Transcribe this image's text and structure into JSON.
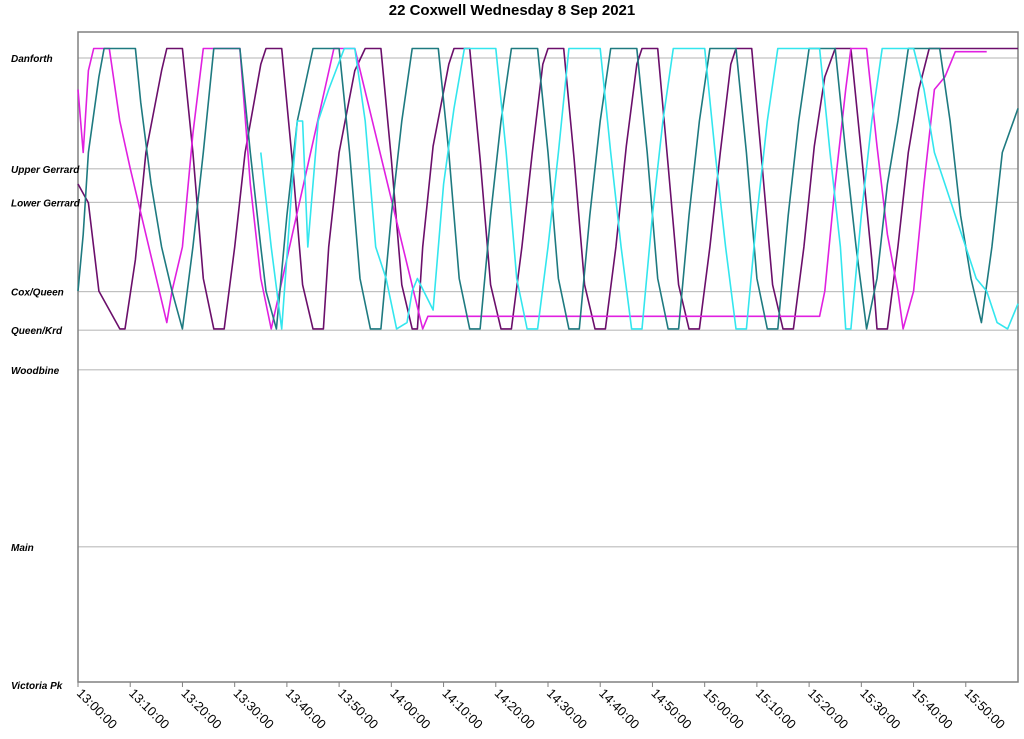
{
  "chart_data": {
    "type": "line",
    "title": "22 Coxwell Wednesday 8 Sep 2021",
    "xlim": [
      "13:00:00",
      "16:00:00"
    ],
    "x_ticks": [
      "13:00:00",
      "13:10:00",
      "13:20:00",
      "13:30:00",
      "13:40:00",
      "13:50:00",
      "14:00:00",
      "14:10:00",
      "14:20:00",
      "14:30:00",
      "14:40:00",
      "14:50:00",
      "15:00:00",
      "15:10:00",
      "15:20:00",
      "15:30:00",
      "15:40:00",
      "15:50:00"
    ],
    "stops": [
      {
        "name": "Danforth",
        "pos": 0
      },
      {
        "name": "Upper Gerrard",
        "pos": 1.76
      },
      {
        "name": "Lower Gerrard",
        "pos": 2.29
      },
      {
        "name": "Cox/Queen",
        "pos": 3.71
      },
      {
        "name": "Queen/Krd",
        "pos": 4.32
      },
      {
        "name": "Woodbine",
        "pos": 4.95
      },
      {
        "name": "Main",
        "pos": 7.76
      },
      {
        "name": "Victoria Pk",
        "pos": 9.95
      }
    ],
    "grid": true,
    "legend": "none",
    "series": [
      {
        "color": "#6b0f6b",
        "points": [
          [
            "13:00",
            2.0
          ],
          [
            "13:02",
            2.3
          ],
          [
            "13:04",
            3.7
          ],
          [
            "13:08",
            4.3
          ],
          [
            "13:09",
            4.3
          ],
          [
            "13:11",
            3.2
          ],
          [
            "13:13",
            1.5
          ],
          [
            "13:16",
            0.2
          ],
          [
            "13:17",
            -0.15
          ],
          [
            "13:20",
            -0.15
          ],
          [
            "13:22",
            1.5
          ],
          [
            "13:24",
            3.5
          ],
          [
            "13:26",
            4.3
          ],
          [
            "13:28",
            4.3
          ],
          [
            "13:30",
            3.0
          ],
          [
            "13:32",
            1.5
          ],
          [
            "13:35",
            0.1
          ],
          [
            "13:36",
            -0.15
          ],
          [
            "13:39",
            -0.15
          ],
          [
            "13:41",
            1.6
          ],
          [
            "13:43",
            3.6
          ],
          [
            "13:45",
            4.3
          ],
          [
            "13:47",
            4.3
          ],
          [
            "13:48",
            3.0
          ],
          [
            "13:50",
            1.5
          ],
          [
            "13:53",
            0.2
          ],
          [
            "13:55",
            -0.15
          ],
          [
            "13:58",
            -0.15
          ],
          [
            "14:00",
            1.6
          ],
          [
            "14:02",
            3.6
          ],
          [
            "14:04",
            4.3
          ],
          [
            "14:05",
            4.3
          ],
          [
            "14:06",
            3.0
          ],
          [
            "14:08",
            1.4
          ],
          [
            "14:11",
            0.1
          ],
          [
            "14:12",
            -0.15
          ],
          [
            "14:15",
            -0.15
          ],
          [
            "14:17",
            1.6
          ],
          [
            "14:19",
            3.6
          ],
          [
            "14:21",
            4.3
          ],
          [
            "14:23",
            4.3
          ],
          [
            "14:25",
            3.0
          ],
          [
            "14:27",
            1.5
          ],
          [
            "14:29",
            0.1
          ],
          [
            "14:30",
            -0.15
          ],
          [
            "14:33",
            -0.15
          ],
          [
            "14:35",
            1.6
          ],
          [
            "14:37",
            3.6
          ],
          [
            "14:39",
            4.3
          ],
          [
            "14:41",
            4.3
          ],
          [
            "14:43",
            3.0
          ],
          [
            "14:45",
            1.4
          ],
          [
            "14:47",
            0.1
          ],
          [
            "14:48",
            -0.15
          ],
          [
            "14:51",
            -0.15
          ],
          [
            "14:53",
            1.7
          ],
          [
            "14:55",
            3.6
          ],
          [
            "14:57",
            4.3
          ],
          [
            "14:59",
            4.3
          ],
          [
            "15:01",
            3.0
          ],
          [
            "15:03",
            1.5
          ],
          [
            "15:05",
            0.1
          ],
          [
            "15:06",
            -0.15
          ],
          [
            "15:09",
            -0.15
          ],
          [
            "15:11",
            1.7
          ],
          [
            "15:13",
            3.6
          ],
          [
            "15:15",
            4.3
          ],
          [
            "15:17",
            4.3
          ],
          [
            "15:19",
            3.0
          ],
          [
            "15:21",
            1.4
          ],
          [
            "15:23",
            0.3
          ],
          [
            "15:25",
            -0.15
          ],
          [
            "15:28",
            -0.15
          ],
          [
            "15:30",
            1.5
          ],
          [
            "15:32",
            3.2
          ],
          [
            "15:33",
            4.3
          ],
          [
            "15:35",
            4.3
          ],
          [
            "15:37",
            3.0
          ],
          [
            "15:39",
            1.5
          ],
          [
            "15:41",
            0.5
          ],
          [
            "15:43",
            -0.15
          ],
          [
            "16:00",
            -0.15
          ]
        ]
      },
      {
        "color": "#e020e0",
        "points": [
          [
            "13:00",
            0.5
          ],
          [
            "13:01",
            1.5
          ],
          [
            "13:02",
            0.2
          ],
          [
            "13:03",
            -0.15
          ],
          [
            "13:06",
            -0.15
          ],
          [
            "13:08",
            1.0
          ],
          [
            "13:10",
            1.75
          ],
          [
            "13:17",
            4.2
          ],
          [
            "13:18",
            3.7
          ],
          [
            "13:20",
            3.0
          ],
          [
            "13:22",
            1.2
          ],
          [
            "13:24",
            -0.15
          ],
          [
            "13:31",
            -0.15
          ],
          [
            "13:33",
            2.0
          ],
          [
            "13:35",
            3.5
          ],
          [
            "13:37",
            4.3
          ],
          [
            "13:49",
            -0.15
          ],
          [
            "13:53",
            -0.15
          ],
          [
            "14:06",
            4.3
          ],
          [
            "14:07",
            4.1
          ],
          [
            "14:08",
            4.1
          ],
          [
            "15:22",
            4.1
          ],
          [
            "15:23",
            3.7
          ],
          [
            "15:25",
            2.0
          ],
          [
            "15:27",
            0.5
          ],
          [
            "15:28",
            -0.15
          ],
          [
            "15:31",
            -0.15
          ],
          [
            "15:33",
            1.4
          ],
          [
            "15:35",
            2.8
          ],
          [
            "15:37",
            3.7
          ],
          [
            "15:38",
            4.3
          ],
          [
            "15:40",
            3.7
          ],
          [
            "15:42",
            2.0
          ],
          [
            "15:44",
            0.5
          ],
          [
            "15:46",
            0.3
          ],
          [
            "15:48",
            -0.1
          ],
          [
            "15:54",
            -0.1
          ]
        ]
      },
      {
        "color": "#1e7a80",
        "points": [
          [
            "13:00",
            3.7
          ],
          [
            "13:01",
            2.8
          ],
          [
            "13:02",
            1.5
          ],
          [
            "13:04",
            0.3
          ],
          [
            "13:05",
            -0.15
          ],
          [
            "13:11",
            -0.15
          ],
          [
            "13:12",
            0.7
          ],
          [
            "13:14",
            2.0
          ],
          [
            "13:16",
            3.0
          ],
          [
            "13:18",
            3.7
          ],
          [
            "13:20",
            4.3
          ],
          [
            "13:22",
            3.0
          ],
          [
            "13:24",
            1.5
          ],
          [
            "13:26",
            -0.15
          ],
          [
            "13:31",
            -0.15
          ],
          [
            "13:33",
            1.5
          ],
          [
            "13:35",
            3.0
          ],
          [
            "13:36",
            3.7
          ],
          [
            "13:38",
            4.3
          ],
          [
            "13:40",
            2.5
          ],
          [
            "13:42",
            1.0
          ],
          [
            "13:45",
            -0.15
          ],
          [
            "13:50",
            -0.15
          ],
          [
            "13:52",
            1.5
          ],
          [
            "13:54",
            3.5
          ],
          [
            "13:56",
            4.3
          ],
          [
            "13:58",
            4.3
          ],
          [
            "14:00",
            2.5
          ],
          [
            "14:02",
            1.0
          ],
          [
            "14:04",
            -0.15
          ],
          [
            "14:09",
            -0.15
          ],
          [
            "14:11",
            1.5
          ],
          [
            "14:13",
            3.5
          ],
          [
            "14:15",
            4.3
          ],
          [
            "14:17",
            4.3
          ],
          [
            "14:19",
            2.5
          ],
          [
            "14:21",
            1.0
          ],
          [
            "14:23",
            -0.15
          ],
          [
            "14:28",
            -0.15
          ],
          [
            "14:30",
            1.5
          ],
          [
            "14:32",
            3.5
          ],
          [
            "14:34",
            4.3
          ],
          [
            "14:36",
            4.3
          ],
          [
            "14:38",
            2.5
          ],
          [
            "14:40",
            1.0
          ],
          [
            "14:42",
            -0.15
          ],
          [
            "14:47",
            -0.15
          ],
          [
            "14:49",
            1.5
          ],
          [
            "14:51",
            3.5
          ],
          [
            "14:53",
            4.3
          ],
          [
            "14:55",
            4.3
          ],
          [
            "14:57",
            2.5
          ],
          [
            "14:59",
            1.0
          ],
          [
            "15:01",
            -0.15
          ],
          [
            "15:06",
            -0.15
          ],
          [
            "15:08",
            1.5
          ],
          [
            "15:10",
            3.5
          ],
          [
            "15:12",
            4.3
          ],
          [
            "15:14",
            4.3
          ],
          [
            "15:16",
            2.5
          ],
          [
            "15:18",
            1.0
          ],
          [
            "15:20",
            -0.15
          ],
          [
            "15:25",
            -0.15
          ],
          [
            "15:27",
            1.5
          ],
          [
            "15:29",
            3.0
          ],
          [
            "15:31",
            4.3
          ],
          [
            "15:33",
            3.5
          ],
          [
            "15:35",
            2.0
          ],
          [
            "15:37",
            1.0
          ],
          [
            "15:39",
            -0.15
          ],
          [
            "15:45",
            -0.15
          ],
          [
            "15:47",
            1.0
          ],
          [
            "15:49",
            2.5
          ],
          [
            "15:51",
            3.5
          ],
          [
            "15:53",
            4.2
          ],
          [
            "15:55",
            3.0
          ],
          [
            "15:57",
            1.5
          ],
          [
            "16:00",
            0.8
          ]
        ]
      },
      {
        "color": "#33e6ee",
        "points": [
          [
            "13:35",
            1.5
          ],
          [
            "13:37",
            3.0
          ],
          [
            "13:39",
            4.3
          ],
          [
            "13:41",
            2.0
          ],
          [
            "13:42",
            1.0
          ],
          [
            "13:43",
            1.0
          ],
          [
            "13:44",
            3.0
          ],
          [
            "13:46",
            1.0
          ],
          [
            "13:48",
            0.5
          ],
          [
            "13:51",
            -0.15
          ],
          [
            "13:53",
            -0.15
          ],
          [
            "13:55",
            1.0
          ],
          [
            "13:57",
            3.0
          ],
          [
            "13:59",
            3.5
          ],
          [
            "14:01",
            4.3
          ],
          [
            "14:03",
            4.2
          ],
          [
            "14:04",
            3.7
          ],
          [
            "14:05",
            3.5
          ],
          [
            "14:08",
            4.0
          ],
          [
            "14:10",
            2.0
          ],
          [
            "14:12",
            0.8
          ],
          [
            "14:14",
            -0.15
          ],
          [
            "14:20",
            -0.15
          ],
          [
            "14:22",
            1.5
          ],
          [
            "14:24",
            3.5
          ],
          [
            "14:26",
            4.3
          ],
          [
            "14:28",
            4.3
          ],
          [
            "14:30",
            3.0
          ],
          [
            "14:32",
            1.5
          ],
          [
            "14:34",
            -0.15
          ],
          [
            "14:40",
            -0.15
          ],
          [
            "14:42",
            1.5
          ],
          [
            "14:44",
            3.0
          ],
          [
            "14:46",
            4.3
          ],
          [
            "14:48",
            4.3
          ],
          [
            "14:50",
            2.5
          ],
          [
            "14:52",
            1.0
          ],
          [
            "14:54",
            -0.15
          ],
          [
            "15:00",
            -0.15
          ],
          [
            "15:02",
            1.5
          ],
          [
            "15:04",
            3.0
          ],
          [
            "15:06",
            4.3
          ],
          [
            "15:08",
            4.3
          ],
          [
            "15:10",
            2.5
          ],
          [
            "15:12",
            1.0
          ],
          [
            "15:14",
            -0.15
          ],
          [
            "15:22",
            -0.15
          ],
          [
            "15:24",
            1.5
          ],
          [
            "15:26",
            3.0
          ],
          [
            "15:27",
            4.3
          ],
          [
            "15:28",
            4.3
          ],
          [
            "15:30",
            2.5
          ],
          [
            "15:32",
            1.0
          ],
          [
            "15:34",
            -0.15
          ],
          [
            "15:40",
            -0.15
          ],
          [
            "15:42",
            0.5
          ],
          [
            "15:44",
            1.5
          ],
          [
            "15:46",
            2.0
          ],
          [
            "15:48",
            2.5
          ],
          [
            "15:50",
            3.0
          ],
          [
            "15:52",
            3.5
          ],
          [
            "15:54",
            3.7
          ],
          [
            "15:56",
            4.2
          ],
          [
            "15:58",
            4.3
          ],
          [
            "16:00",
            3.9
          ]
        ]
      }
    ]
  }
}
